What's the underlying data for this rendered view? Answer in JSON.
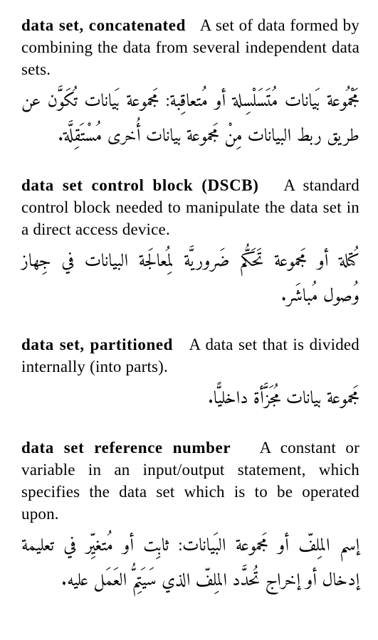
{
  "entries": [
    {
      "term": "data set, concatenated",
      "definition": "A set of data formed by combining the data from several independent data sets.",
      "arabic": "مَجْمُوعة بَيانات مُتَسَلْسِلة أو مُتعاقِبة: مَجموعة بَيانات تُكَوَّن عن طريق ربط البيانات مِنْ مَجموعة بيانات أُخرى مُسْتَقِلَّة."
    },
    {
      "term": "data set control block (DSCB)",
      "definition": "A standard control block needed to manipu­late the data set in a direct access device.",
      "arabic": "كُتلة أو مَجموعة تَحَكُّم ضَروريَّة لِمُعالَجة البيانات في جِهاز وُصول مُباشَر."
    },
    {
      "term": "data set, partitioned",
      "definition": "A data set that is divided internally (into parts).",
      "arabic": "مَجموعة بيانات مُجَزَّأة داخليًّا."
    },
    {
      "term": "data set reference number",
      "definition": "A con­stant or variable in an input/output state­ment, which specifies the data set which is to be operated upon.",
      "arabic": "إسم المِلفّ أو مَجموعة البَيانات: ثابِت أو مُتغيِّر في تعليمة إدخال أو إخراج تُحدَّد المِلفّ الذي سَيَتِمُّ العَمَل عليه."
    }
  ]
}
